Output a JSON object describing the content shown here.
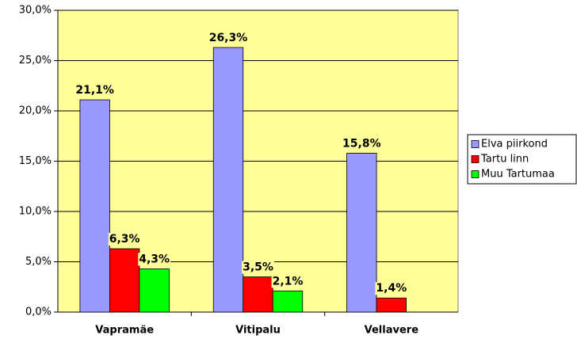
{
  "chart_data": {
    "type": "bar",
    "categories": [
      "Vapramäe",
      "Vitipalu",
      "Vellavere"
    ],
    "series": [
      {
        "name": "Elva piirkond",
        "color": "#9999ff",
        "values": [
          21.1,
          26.3,
          15.8
        ],
        "value_labels": [
          "21,1%",
          "26,3%",
          "15,8%"
        ]
      },
      {
        "name": "Tartu linn",
        "color": "#ff0000",
        "values": [
          6.3,
          3.5,
          1.4
        ],
        "value_labels": [
          "6,3%",
          "3,5%",
          "1,4%"
        ]
      },
      {
        "name": "Muu Tartumaa",
        "color": "#00ff00",
        "values": [
          4.3,
          2.1,
          null
        ],
        "value_labels": [
          "4,3%",
          "2,1%",
          null
        ]
      }
    ],
    "ylim": [
      0,
      30
    ],
    "yticks": [
      {
        "value": 0,
        "label": "0,0%"
      },
      {
        "value": 5,
        "label": "5,0%"
      },
      {
        "value": 10,
        "label": "10,0%"
      },
      {
        "value": 15,
        "label": "15,0%"
      },
      {
        "value": 20,
        "label": "20,0%"
      },
      {
        "value": 25,
        "label": "25,0%"
      },
      {
        "value": 30,
        "label": "30,0%"
      }
    ],
    "grid": true,
    "plot_background": "#ffff99",
    "legend": "right"
  }
}
